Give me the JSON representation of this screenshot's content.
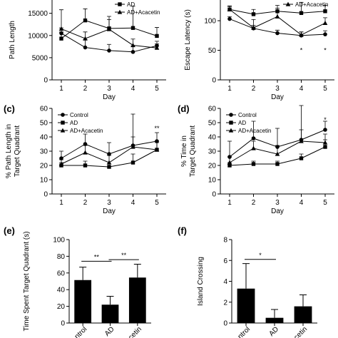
{
  "figure": {
    "chart_data": [
      {
        "id": "a",
        "type": "line",
        "panel_label": "",
        "xlabel": "Day",
        "ylabel": "Path Length",
        "x": [
          1,
          2,
          3,
          4,
          5
        ],
        "ylim": [
          0,
          18000
        ],
        "yticks": [
          0,
          5000,
          10000,
          15000
        ],
        "ytick_labels": [
          "0",
          "5000",
          "10000",
          "15000"
        ],
        "series": [
          {
            "name": "",
            "marker": "circle",
            "values": [
              10500,
              7300,
              6600,
              6300,
              7700
            ],
            "err": [
              1200,
              1800,
              1400,
              1400,
              1000
            ]
          },
          {
            "name": "AD",
            "marker": "square",
            "values": [
              9300,
              13400,
              11600,
              11700,
              9900
            ],
            "err": [
              1500,
              2600,
              2700,
              4900,
              1900
            ]
          },
          {
            "name": "AD+Acacetin",
            "marker": "triangle",
            "values": [
              11500,
              9300,
              11400,
              7800,
              7200
            ],
            "err": [
              4300,
              1500,
              2200,
              1400,
              900
            ]
          }
        ],
        "legend_position": "top-right",
        "annotations": []
      },
      {
        "id": "b",
        "type": "line",
        "panel_label": "",
        "xlabel": "Day",
        "ylabel": "Escape Latency (s)",
        "x": [
          1,
          2,
          3,
          4,
          5
        ],
        "ylim": [
          0,
          135
        ],
        "yticks": [
          0,
          50,
          100
        ],
        "ytick_labels": [
          "0",
          "50",
          "100"
        ],
        "series": [
          {
            "name": "",
            "marker": "circle",
            "values": [
              103,
              87,
              79,
              75,
              77
            ],
            "err": [
              4,
              5,
              5,
              6,
              6
            ]
          },
          {
            "name": "",
            "marker": "square",
            "values": [
              119,
              111,
              116,
              113,
              116
            ],
            "err": [
              6,
              8,
              10,
              18,
              10
            ]
          },
          {
            "name": "AD+Acacetin",
            "marker": "triangle",
            "values": [
              119,
              88,
              107,
              76,
              96
            ],
            "err": [
              5,
              14,
              14,
              5,
              9
            ]
          }
        ],
        "legend_position": "top-right",
        "annotations": [
          {
            "text": "*",
            "x": 4,
            "y": 50
          },
          {
            "text": "*",
            "x": 5,
            "y": 50
          }
        ]
      },
      {
        "id": "c",
        "type": "line",
        "panel_label": "(c)",
        "xlabel": "Day",
        "ylabel": "% Path Length in Target Quadrant",
        "ylabel_lines": [
          "% Path Length in",
          "Target Quadrant"
        ],
        "x": [
          1,
          2,
          3,
          4,
          5
        ],
        "ylim": [
          0,
          60
        ],
        "yticks": [
          0,
          10,
          20,
          30,
          40,
          50,
          60
        ],
        "ytick_labels": [
          "0",
          "10",
          "20",
          "30",
          "40",
          "50",
          "60"
        ],
        "series": [
          {
            "name": "Control",
            "marker": "circle",
            "values": [
              25,
              35,
              28,
              34,
              37
            ],
            "err": [
              5,
              7,
              8,
              22,
              6
            ]
          },
          {
            "name": "AD",
            "marker": "square",
            "values": [
              20,
              20,
              19,
              22,
              31
            ],
            "err": [
              2,
              3,
              2,
              6,
              6
            ]
          },
          {
            "name": "AD+Acacetin",
            "marker": "triangle",
            "values": [
              21,
              29,
              22,
              33,
              31
            ],
            "err": [
              3,
              5,
              5,
              7,
              5
            ]
          }
        ],
        "legend_position": "top-left",
        "annotations": [
          {
            "text": "**",
            "x": 5,
            "y": 46
          }
        ]
      },
      {
        "id": "d",
        "type": "line",
        "panel_label": "(d)",
        "xlabel": "Day",
        "ylabel": "% Time in Target Quadrant",
        "ylabel_lines": [
          "% Time in",
          "Target Quadrant"
        ],
        "x": [
          1,
          2,
          3,
          4,
          5
        ],
        "ylim": [
          0,
          60
        ],
        "yticks": [
          0,
          10,
          20,
          30,
          40,
          50,
          60
        ],
        "ytick_labels": [
          "0",
          "10",
          "20",
          "30",
          "40",
          "50",
          "60"
        ],
        "series": [
          {
            "name": "Control",
            "marker": "circle",
            "values": [
              26,
              39,
              33,
              38,
              45
            ],
            "err": [
              11,
              12,
              13,
              24,
              6
            ]
          },
          {
            "name": "AD",
            "marker": "square",
            "values": [
              20,
              21,
              21,
              25,
              33
            ],
            "err": [
              2,
              2,
              2,
              3,
              5
            ]
          },
          {
            "name": "AD+Acacetin",
            "marker": "triangle",
            "values": [
              22,
              32,
              28,
              37,
              36
            ],
            "err": [
              4,
              5,
              6,
              8,
              6
            ]
          }
        ],
        "legend_position": "top-left",
        "annotations": [
          {
            "text": "*",
            "x": 5,
            "y": 52
          }
        ]
      },
      {
        "id": "e",
        "type": "bar",
        "panel_label": "(e)",
        "xlabel": "",
        "ylabel": "Time Spent Target Quadrant (s)",
        "categories": [
          "Control",
          "AD",
          "AD+Acacetin"
        ],
        "tick_labels": [
          "ntrol",
          "AD",
          "cetin"
        ],
        "values": [
          51.5,
          22,
          54.5
        ],
        "err": [
          15.5,
          10,
          16
        ],
        "ylim": [
          0,
          100
        ],
        "yticks": [
          0,
          20,
          40,
          60,
          80,
          100
        ],
        "ytick_labels": [
          "0",
          "20",
          "40",
          "60",
          "80",
          "100"
        ],
        "annotations": [
          {
            "text": "**",
            "from": 0,
            "to": 1,
            "y": 74
          },
          {
            "text": "**",
            "from": 1,
            "to": 2,
            "y": 76
          }
        ]
      },
      {
        "id": "f",
        "type": "bar",
        "panel_label": "(f)",
        "xlabel": "",
        "ylabel": "Island Crossing",
        "categories": [
          "Control",
          "AD",
          "AD+Acacetin"
        ],
        "tick_labels": [
          "ntrol",
          "AD",
          "cetin"
        ],
        "values": [
          3.3,
          0.5,
          1.6
        ],
        "err": [
          2.4,
          0.8,
          1.1
        ],
        "ylim": [
          0,
          8
        ],
        "yticks": [
          0,
          2,
          4,
          6,
          8
        ],
        "ytick_labels": [
          "0",
          "2",
          "4",
          "6",
          "8"
        ],
        "annotations": [
          {
            "text": "*",
            "from": 0,
            "to": 1,
            "y": 6.1
          }
        ]
      }
    ]
  }
}
